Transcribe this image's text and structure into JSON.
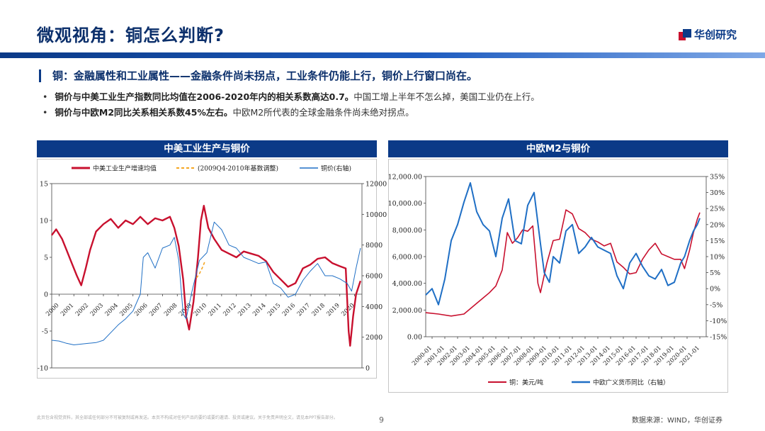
{
  "header": {
    "title": "微观视角：铜怎么判断?",
    "logo_text": "华创研究"
  },
  "subhead": "铜：金融属性和工业属性——金融条件尚未拐点，工业条件仍能上行，铜价上行窗口尚在。",
  "bullets": [
    {
      "bold": "铜价与中美工业生产指数同比均值在2006-2020年内的相关系数高达0.7。",
      "rest": "中国工增上半年不怎么掉，美国工业仍在上行。"
    },
    {
      "bold": "铜价与中欧M2同比关系相关系数45%左右。",
      "rest": "中欧M2所代表的全球金融条件尚未绝对拐点。"
    }
  ],
  "colors": {
    "red": "#c8102e",
    "blue": "#1f6fc5",
    "orange": "#f5a623",
    "navy": "#0b3a87"
  },
  "chart_data": [
    {
      "type": "line",
      "title": "中美工业生产与铜价",
      "legend": [
        "中美工业生产增速均值",
        "(2009Q4-2010年基数调整)",
        "铜价(右轴)"
      ],
      "x_ticks": [
        "2000",
        "2001",
        "2002",
        "2003",
        "2004",
        "2005",
        "2006",
        "2007",
        "2008",
        "2009",
        "2010",
        "2011",
        "2012",
        "2013",
        "2014",
        "2015",
        "2016",
        "2017",
        "2018",
        "2019",
        "2020"
      ],
      "y_left": {
        "min": -10,
        "max": 15,
        "ticks": [
          "15",
          "10",
          "5",
          "0",
          "-5",
          "-10"
        ]
      },
      "y_right": {
        "min": 0,
        "max": 12000,
        "ticks": [
          "12000",
          "10000",
          "8000",
          "6000",
          "4000",
          "2000",
          "0"
        ]
      },
      "series": [
        {
          "name": "中美工业生产增速均值",
          "axis": "left",
          "x": [
            2000,
            2000.3,
            2000.7,
            2001,
            2001.3,
            2001.7,
            2002,
            2002.3,
            2002.6,
            2003,
            2003.5,
            2004,
            2004.5,
            2005,
            2005.5,
            2006,
            2006.5,
            2007,
            2007.5,
            2008,
            2008.3,
            2008.6,
            2008.9,
            2009.1,
            2009.3,
            2009.6,
            2009.9,
            2010.1,
            2010.3,
            2010.6,
            2011,
            2011.5,
            2012,
            2012.5,
            2013,
            2013.5,
            2014,
            2014.5,
            2015,
            2015.5,
            2016,
            2016.5,
            2017,
            2017.5,
            2018,
            2018.5,
            2019,
            2019.5,
            2019.9,
            2020.1,
            2020.2,
            2020.4,
            2020.6,
            2020.9
          ],
          "values": [
            8,
            8.8,
            7.5,
            6,
            4.5,
            2.5,
            1.2,
            3.5,
            6,
            8.5,
            9.5,
            10.2,
            9,
            10,
            9.5,
            10.5,
            9.5,
            10.3,
            10,
            10.5,
            9,
            6.5,
            2,
            -3,
            -4.8,
            -1,
            5,
            10,
            12,
            9,
            7.5,
            6,
            5.5,
            5,
            5.8,
            5.5,
            5.2,
            4.5,
            3,
            2,
            1,
            1.5,
            3.5,
            4,
            4.8,
            5,
            4.2,
            3.8,
            3.5,
            -5,
            -7,
            -3,
            0,
            1.8
          ]
        },
        {
          "name": "(2009Q4-2010年基数调整)",
          "axis": "left",
          "x": [
            2009.8,
            2010.0,
            2010.2,
            2010.4
          ],
          "values": [
            2.2,
            2.8,
            3.6,
            4.6
          ]
        },
        {
          "name": "铜价(右轴)",
          "axis": "right",
          "x": [
            2000,
            2000.5,
            2001,
            2001.5,
            2002,
            2002.5,
            2003,
            2003.5,
            2004,
            2004.5,
            2005,
            2005.5,
            2006,
            2006.2,
            2006.5,
            2007,
            2007.5,
            2008,
            2008.3,
            2008.6,
            2008.9,
            2009.1,
            2009.5,
            2010,
            2010.5,
            2011,
            2011.5,
            2012,
            2012.5,
            2013,
            2013.5,
            2014,
            2014.5,
            2015,
            2015.5,
            2016,
            2016.5,
            2017,
            2017.5,
            2018,
            2018.5,
            2019,
            2019.5,
            2020,
            2020.3,
            2020.6,
            2020.9
          ],
          "values": [
            1800,
            1750,
            1600,
            1500,
            1550,
            1600,
            1650,
            1800,
            2300,
            2800,
            3200,
            3700,
            4800,
            7200,
            7500,
            6500,
            7800,
            8000,
            8500,
            7000,
            3500,
            3200,
            5000,
            7000,
            7500,
            9500,
            9000,
            8000,
            7800,
            7200,
            7000,
            6800,
            6900,
            5500,
            5200,
            4600,
            4800,
            5700,
            6300,
            6800,
            6000,
            6000,
            5800,
            5500,
            5000,
            6500,
            7800
          ]
        }
      ]
    },
    {
      "type": "line",
      "title": "中欧M2与铜价",
      "legend": [
        "铜：美元/吨",
        "中欧广义货币同比（右轴）"
      ],
      "x_ticks": [
        "2000-01",
        "2001-01",
        "2002-01",
        "2003-01",
        "2004-01",
        "2005-01",
        "2006-01",
        "2007-01",
        "2008-01",
        "2009-01",
        "2010-01",
        "2011-01",
        "2012-01",
        "2013-01",
        "2014-01",
        "2015-01",
        "2016-01",
        "2017-01",
        "2018-01",
        "2019-01",
        "2020-01",
        "2021-01"
      ],
      "y_left": {
        "min": 0,
        "max": 12000,
        "ticks": [
          "12,000.00",
          "10,000.00",
          "8,000.00",
          "6,000.00",
          "4,000.00",
          "2,000.00",
          "0.00"
        ]
      },
      "y_right": {
        "min": -15,
        "max": 35,
        "ticks": [
          "35%",
          "30%",
          "25%",
          "20%",
          "15%",
          "10%",
          "5%",
          "0%",
          "-5%",
          "-10%",
          "-15%"
        ]
      },
      "series": [
        {
          "name": "铜：美元/吨",
          "axis": "left",
          "x": [
            2000,
            2001,
            2002,
            2003,
            2004,
            2004.5,
            2005,
            2005.5,
            2006,
            2006.4,
            2006.8,
            2007.2,
            2007.6,
            2008,
            2008.4,
            2008.8,
            2009,
            2009.5,
            2010,
            2010.5,
            2011,
            2011.5,
            2012,
            2012.5,
            2013,
            2013.5,
            2014,
            2014.5,
            2015,
            2015.5,
            2016,
            2016.5,
            2017,
            2017.5,
            2018,
            2018.5,
            2019,
            2019.5,
            2020,
            2020.3,
            2020.7,
            2021,
            2021.3,
            2021.5
          ],
          "values": [
            1800,
            1700,
            1550,
            1700,
            2500,
            2900,
            3300,
            3800,
            5000,
            7800,
            7000,
            7400,
            8000,
            7900,
            8300,
            4000,
            3300,
            5500,
            7200,
            7300,
            9500,
            9200,
            8100,
            7800,
            7300,
            7100,
            6800,
            7000,
            5600,
            5200,
            4700,
            4800,
            5800,
            6500,
            7000,
            6200,
            6000,
            5800,
            5800,
            5100,
            6500,
            7800,
            8800,
            9300
          ]
        },
        {
          "name": "中欧广义货币同比（右轴）",
          "axis": "right",
          "x": [
            2000,
            2000.5,
            2001,
            2001.5,
            2002,
            2002.5,
            2003,
            2003.5,
            2004,
            2004.5,
            2005,
            2005.5,
            2006,
            2006.5,
            2007,
            2007.5,
            2008,
            2008.5,
            2009,
            2009.3,
            2009.7,
            2010,
            2010.5,
            2011,
            2011.5,
            2012,
            2012.5,
            2013,
            2013.5,
            2014,
            2014.5,
            2015,
            2015.5,
            2016,
            2016.5,
            2017,
            2017.5,
            2018,
            2018.5,
            2019,
            2019.5,
            2020,
            2020.3,
            2020.7,
            2021,
            2021.3,
            2021.5
          ],
          "values": [
            -2,
            0,
            -5,
            3,
            15,
            20,
            27,
            33,
            24,
            20,
            18,
            10,
            22,
            28,
            15,
            14,
            26,
            30,
            14,
            5,
            2,
            10,
            8,
            18,
            20,
            11,
            13,
            16,
            13,
            12,
            11,
            4,
            0,
            8,
            11,
            7,
            4,
            3,
            6,
            1,
            2,
            8,
            10,
            15,
            18,
            20,
            22
          ]
        }
      ]
    }
  ],
  "footer": {
    "disclaimer": "此页包含视觉资料，其全部或任何部分不可被复制或再发送。本页不构成对任何产品的要约或要约邀请、投资或建议。关于免责声明全文，请见本PPT报告部分。",
    "page": "9",
    "source": "数据来源：WIND，华创证券"
  }
}
